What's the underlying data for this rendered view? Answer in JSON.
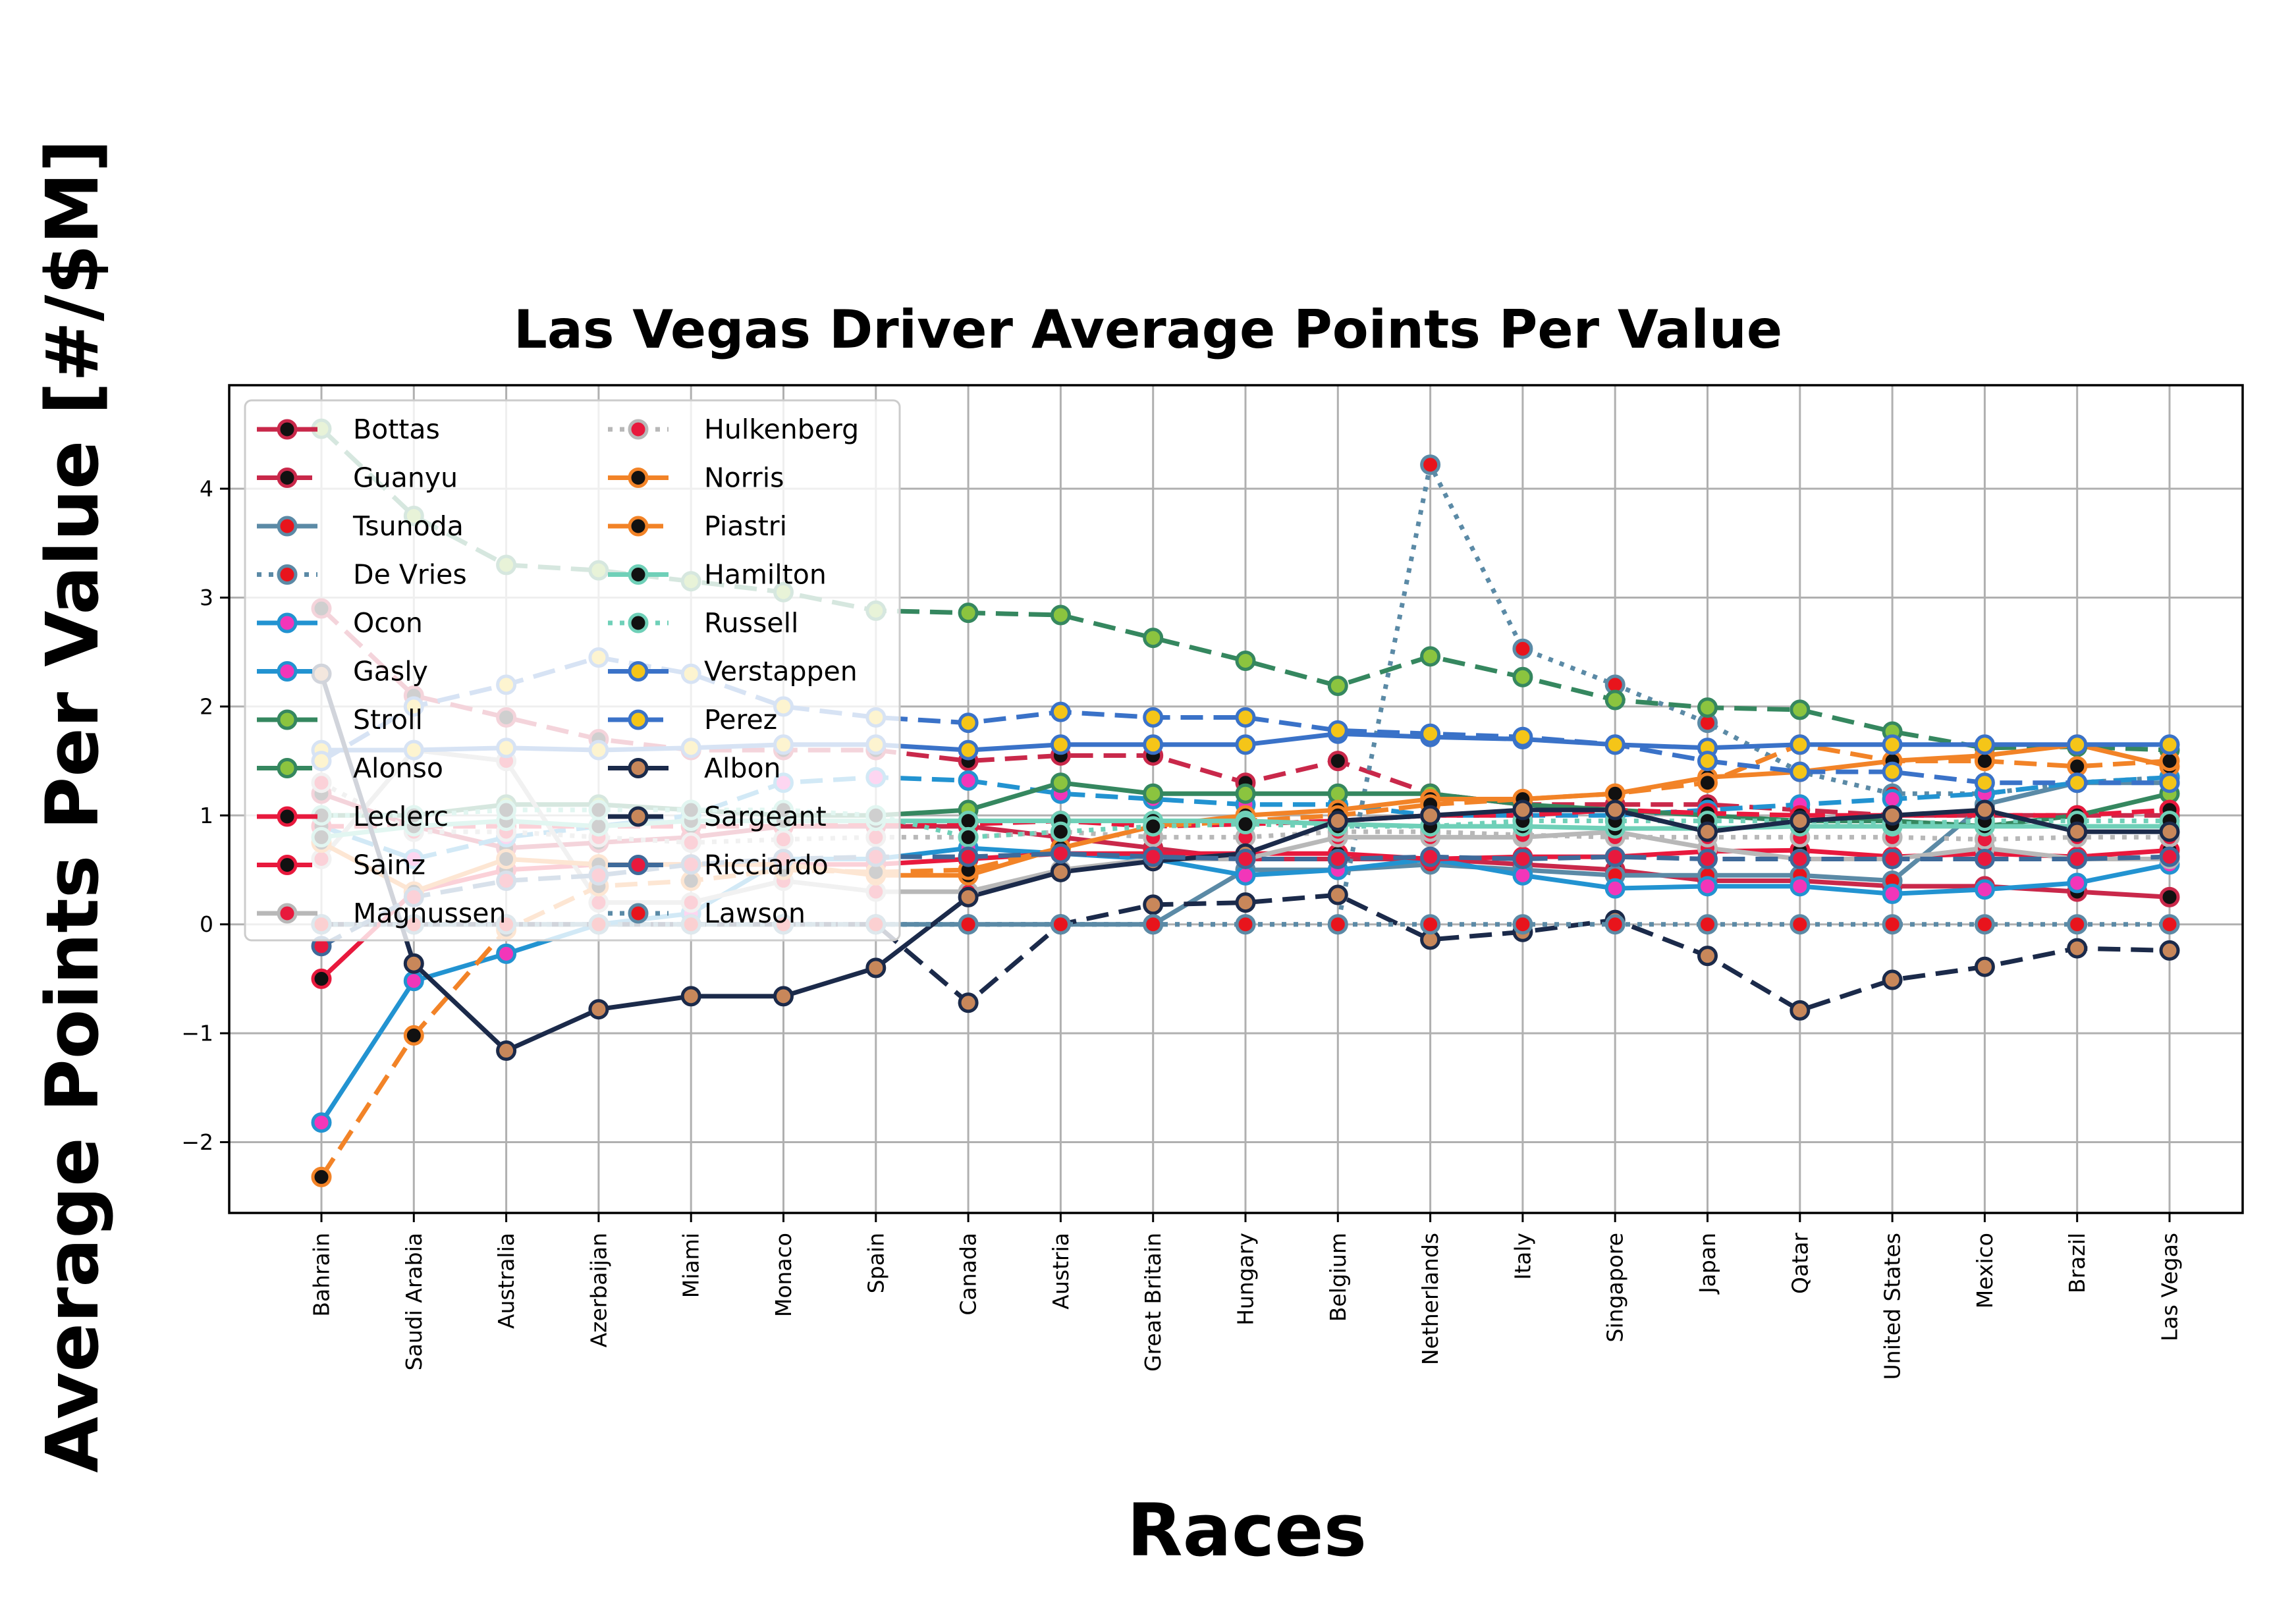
{
  "chart_data": {
    "type": "line",
    "title": "Las Vegas Driver Average Points Per Value",
    "xlabel": "Races",
    "ylabel": "Average Points Per Value [#/$M]",
    "ylim": [
      -2.65,
      4.95
    ],
    "yticks": [
      -2,
      -1,
      0,
      1,
      2,
      3,
      4
    ],
    "ytick_labels": [
      "−2",
      "−1",
      "0",
      "1",
      "2",
      "3",
      "4"
    ],
    "grid": true,
    "legend_position": "upper-left",
    "legend_columns": 2,
    "categories": [
      "Bahrain",
      "Saudi Arabia",
      "Australia",
      "Azerbaijan",
      "Miami",
      "Monaco",
      "Spain",
      "Canada",
      "Austria",
      "Great Britain",
      "Hungary",
      "Belgium",
      "Netherlands",
      "Italy",
      "Singapore",
      "Japan",
      "Qatar",
      "United States",
      "Mexico",
      "Brazil",
      "Las Vegas"
    ],
    "series": [
      {
        "name": "Bottas",
        "color": "#c9284a",
        "linestyle": "solid",
        "marker_face": "#111111",
        "marker_edge": "#c9284a",
        "values": [
          1.2,
          0.9,
          0.7,
          0.75,
          0.8,
          0.9,
          0.9,
          0.9,
          0.8,
          0.7,
          0.6,
          0.6,
          0.6,
          0.55,
          0.5,
          0.4,
          0.4,
          0.35,
          0.35,
          0.3,
          0.25
        ]
      },
      {
        "name": "Guanyu",
        "color": "#c9284a",
        "linestyle": "dashed",
        "marker_face": "#111111",
        "marker_edge": "#c9284a",
        "values": [
          2.9,
          2.1,
          1.9,
          1.7,
          1.6,
          1.6,
          1.6,
          1.5,
          1.55,
          1.55,
          1.3,
          1.5,
          1.2,
          1.1,
          1.1,
          1.1,
          1.05,
          1.0,
          1.0,
          1.0,
          1.0
        ]
      },
      {
        "name": "Tsunoda",
        "color": "#5b8aa6",
        "linestyle": "solid",
        "marker_face": "#e8141c",
        "marker_edge": "#5b8aa6",
        "values": [
          0.0,
          0.0,
          0.0,
          0.0,
          0.0,
          0.0,
          0.0,
          0.0,
          0.0,
          0.0,
          0.5,
          0.5,
          0.55,
          0.5,
          0.45,
          0.45,
          0.45,
          0.4,
          1.1,
          1.3,
          1.3
        ]
      },
      {
        "name": "De Vries",
        "color": "#5b8aa6",
        "linestyle": "dotted",
        "marker_face": "#e8141c",
        "marker_edge": "#5b8aa6",
        "values": [
          0.0,
          0.0,
          0.0,
          0.0,
          0.0,
          0.0,
          0.0,
          0.0,
          0.0,
          0.0,
          0.0,
          0.0,
          4.22,
          2.53,
          2.2,
          1.85,
          1.4,
          1.2,
          1.2,
          1.3,
          1.35
        ]
      },
      {
        "name": "Ocon",
        "color": "#2293d1",
        "linestyle": "solid",
        "marker_face": "#f236b9",
        "marker_edge": "#2293d1",
        "values": [
          -1.82,
          -0.52,
          -0.27,
          0.0,
          0.1,
          0.6,
          0.6,
          0.7,
          0.65,
          0.6,
          0.45,
          0.5,
          0.6,
          0.45,
          0.33,
          0.35,
          0.35,
          0.28,
          0.32,
          0.38,
          0.55
        ]
      },
      {
        "name": "Gasly",
        "color": "#2293d1",
        "linestyle": "dashed",
        "marker_face": "#f236b9",
        "marker_edge": "#2293d1",
        "values": [
          0.9,
          0.6,
          0.8,
          0.9,
          1.0,
          1.3,
          1.35,
          1.32,
          1.2,
          1.15,
          1.1,
          1.1,
          1.0,
          1.0,
          1.0,
          1.05,
          1.1,
          1.15,
          1.2,
          1.3,
          1.35
        ]
      },
      {
        "name": "Stroll",
        "color": "#35875f",
        "linestyle": "solid",
        "marker_face": "#8bc43f",
        "marker_edge": "#35875f",
        "values": [
          1.0,
          1.0,
          1.1,
          1.1,
          1.05,
          1.0,
          1.0,
          1.05,
          1.3,
          1.2,
          1.2,
          1.2,
          1.2,
          1.1,
          1.05,
          1.0,
          0.95,
          0.95,
          0.9,
          1.0,
          1.2
        ]
      },
      {
        "name": "Alonso",
        "color": "#35875f",
        "linestyle": "dashed",
        "marker_face": "#8bc43f",
        "marker_edge": "#35875f",
        "values": [
          4.55,
          3.75,
          3.3,
          3.25,
          3.15,
          3.05,
          2.88,
          2.86,
          2.84,
          2.63,
          2.42,
          2.19,
          2.46,
          2.27,
          2.06,
          1.99,
          1.97,
          1.77,
          1.62,
          1.63,
          1.6
        ]
      },
      {
        "name": "Leclerc",
        "color": "#e8193d",
        "linestyle": "solid",
        "marker_face": "#111111",
        "marker_edge": "#e8193d",
        "values": [
          -0.5,
          0.3,
          0.5,
          0.55,
          0.55,
          0.55,
          0.55,
          0.6,
          0.65,
          0.65,
          0.65,
          0.65,
          0.6,
          0.62,
          0.62,
          0.67,
          0.68,
          0.62,
          0.65,
          0.62,
          0.68
        ]
      },
      {
        "name": "Sainz",
        "color": "#e8193d",
        "linestyle": "dashed",
        "marker_face": "#111111",
        "marker_edge": "#e8193d",
        "values": [
          0.9,
          0.9,
          0.9,
          0.9,
          0.9,
          0.9,
          0.92,
          0.92,
          0.95,
          0.9,
          0.92,
          0.95,
          1.0,
          1.0,
          1.05,
          1.02,
          1.0,
          1.0,
          1.0,
          1.0,
          1.05
        ]
      },
      {
        "name": "Magnussen",
        "color": "#b8b8b8",
        "linestyle": "solid",
        "marker_face": "#e8193d",
        "marker_edge": "#b8b8b8",
        "values": [
          0.6,
          1.6,
          1.5,
          0.2,
          0.2,
          0.4,
          0.3,
          0.3,
          0.5,
          0.6,
          0.6,
          0.8,
          0.8,
          0.8,
          0.85,
          0.7,
          0.6,
          0.6,
          0.7,
          0.6,
          0.6
        ]
      },
      {
        "name": "Hulkenberg",
        "color": "#b8b8b8",
        "linestyle": "dotted",
        "marker_face": "#e8193d",
        "marker_edge": "#b8b8b8",
        "values": [
          1.3,
          0.85,
          0.85,
          0.8,
          0.75,
          0.78,
          0.8,
          0.8,
          0.85,
          0.8,
          0.8,
          0.85,
          0.85,
          0.82,
          0.8,
          0.8,
          0.8,
          0.8,
          0.78,
          0.8,
          0.8
        ]
      },
      {
        "name": "Norris",
        "color": "#f28327",
        "linestyle": "solid",
        "marker_face": "#111111",
        "marker_edge": "#f28327",
        "values": [
          0.75,
          0.3,
          0.6,
          0.55,
          0.55,
          0.55,
          0.45,
          0.45,
          0.7,
          0.9,
          1.0,
          1.05,
          1.15,
          1.15,
          1.2,
          1.35,
          1.4,
          1.5,
          1.55,
          1.65,
          1.45
        ]
      },
      {
        "name": "Piastri",
        "color": "#f28327",
        "linestyle": "dashed",
        "marker_face": "#111111",
        "marker_edge": "#f28327",
        "values": [
          -2.32,
          -1.02,
          -0.05,
          0.35,
          0.4,
          0.5,
          0.48,
          0.5,
          0.7,
          0.9,
          0.95,
          1.0,
          1.1,
          1.15,
          1.2,
          1.3,
          1.65,
          1.5,
          1.5,
          1.45,
          1.5
        ]
      },
      {
        "name": "Hamilton",
        "color": "#6fd0b8",
        "linestyle": "solid",
        "marker_face": "#111111",
        "marker_edge": "#6fd0b8",
        "values": [
          0.8,
          0.9,
          0.95,
          0.9,
          0.95,
          0.95,
          0.95,
          0.95,
          0.95,
          0.95,
          0.95,
          0.92,
          0.9,
          0.9,
          0.88,
          0.88,
          0.9,
          0.9,
          0.9,
          0.9,
          0.9
        ]
      },
      {
        "name": "Russell",
        "color": "#6fd0b8",
        "linestyle": "dotted",
        "marker_face": "#111111",
        "marker_edge": "#6fd0b8",
        "values": [
          1.0,
          1.0,
          1.05,
          1.05,
          1.05,
          1.05,
          1.0,
          0.8,
          0.85,
          0.9,
          0.92,
          0.9,
          0.9,
          0.95,
          0.95,
          0.95,
          0.95,
          0.92,
          0.95,
          0.95,
          0.95
        ]
      },
      {
        "name": "Verstappen",
        "color": "#3a72c8",
        "linestyle": "solid",
        "marker_face": "#f5c518",
        "marker_edge": "#3a72c8",
        "values": [
          1.6,
          1.6,
          1.62,
          1.6,
          1.62,
          1.65,
          1.65,
          1.6,
          1.65,
          1.65,
          1.65,
          1.75,
          1.72,
          1.7,
          1.65,
          1.62,
          1.65,
          1.65,
          1.65,
          1.65,
          1.65
        ]
      },
      {
        "name": "Perez",
        "color": "#3a72c8",
        "linestyle": "dashed",
        "marker_face": "#f5c518",
        "marker_edge": "#3a72c8",
        "values": [
          1.5,
          2.0,
          2.2,
          2.45,
          2.3,
          2.0,
          1.9,
          1.85,
          1.95,
          1.9,
          1.9,
          1.78,
          1.75,
          1.72,
          1.65,
          1.5,
          1.4,
          1.4,
          1.3,
          1.3,
          1.3
        ]
      },
      {
        "name": "Albon",
        "color": "#1b2a4a",
        "linestyle": "solid",
        "marker_face": "#c8875a",
        "marker_edge": "#1b2a4a",
        "values": [
          2.3,
          -0.36,
          -1.16,
          -0.78,
          -0.66,
          -0.66,
          -0.4,
          0.25,
          0.48,
          0.58,
          0.65,
          0.95,
          1.0,
          1.05,
          1.05,
          0.85,
          0.95,
          1.0,
          1.05,
          0.85,
          0.85
        ]
      },
      {
        "name": "Sargeant",
        "color": "#1b2a4a",
        "linestyle": "dashed",
        "marker_face": "#c8875a",
        "marker_edge": "#1b2a4a",
        "values": [
          0.0,
          0.0,
          0.0,
          0.0,
          0.0,
          0.0,
          0.0,
          -0.72,
          0.0,
          0.18,
          0.2,
          0.27,
          -0.14,
          -0.07,
          0.04,
          -0.29,
          -0.79,
          -0.51,
          -0.39,
          -0.22,
          -0.24
        ]
      },
      {
        "name": "Ricciardo",
        "color": "#3e6a9a",
        "linestyle": "dashed",
        "marker_face": "#e8193d",
        "marker_edge": "#3e6a9a",
        "values": [
          -0.2,
          0.25,
          0.4,
          0.45,
          0.55,
          0.6,
          0.62,
          0.62,
          0.65,
          0.62,
          0.6,
          0.6,
          0.62,
          0.6,
          0.62,
          0.6,
          0.6,
          0.6,
          0.6,
          0.6,
          0.62
        ]
      },
      {
        "name": "Lawson",
        "color": "#5b8aa6",
        "linestyle": "dotted",
        "marker_face": "#e8141c",
        "marker_edge": "#5b8aa6",
        "values": [
          0.0,
          0.0,
          0.0,
          0.0,
          0.0,
          0.0,
          0.0,
          0.0,
          0.0,
          0.0,
          0.0,
          0.0,
          0.0,
          0.0,
          0.0,
          0.0,
          0.0,
          0.0,
          0.0,
          0.0,
          0.0
        ]
      }
    ]
  }
}
